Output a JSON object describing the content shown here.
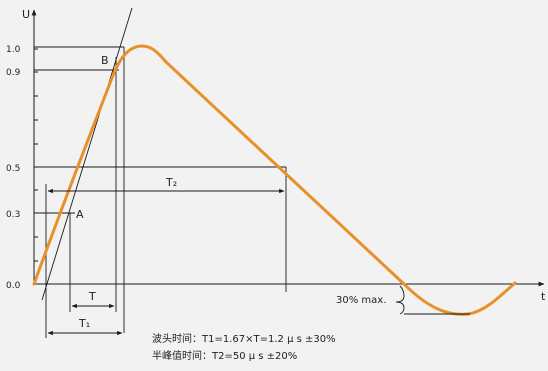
{
  "axes": {
    "y_label": "U",
    "x_label": "t",
    "ticks": [
      "1.0",
      "0.9",
      "0.5",
      "0.3",
      "0.0"
    ]
  },
  "points": {
    "a": "A",
    "b": "B"
  },
  "intervals": {
    "t": "T",
    "t1": "T₁",
    "t2": "T₂"
  },
  "annotation": "30% max.",
  "captions": {
    "line1": "波头时间：T1=1.67×T=1.2 μ s ±30%",
    "line2": "半峰值时间：T2=50 μ s ±20%"
  },
  "colors": {
    "curve": "#e8902a",
    "ink": "#1a1a1a",
    "background": "#f2f2f2"
  }
}
